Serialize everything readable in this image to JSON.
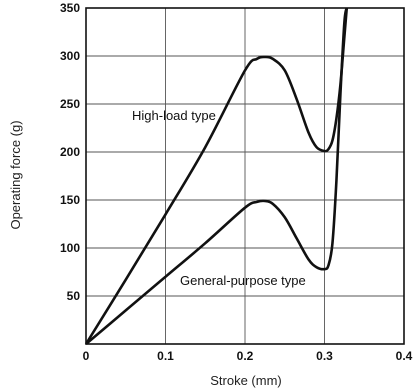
{
  "chart_data": {
    "type": "line",
    "xlabel": "Stroke (mm)",
    "ylabel": "Operating force (g)",
    "xlim": [
      0,
      0.4
    ],
    "ylim": [
      0,
      350
    ],
    "grid": true,
    "xticks": [
      0,
      0.1,
      0.2,
      0.3,
      0.4
    ],
    "xtick_labels": [
      "0",
      "0.1",
      "0.2",
      "0.3",
      "0.4"
    ],
    "yticks": [
      50,
      100,
      150,
      200,
      250,
      300,
      350
    ],
    "ytick_labels": [
      "50",
      "100",
      "150",
      "200",
      "250",
      "300",
      "350"
    ],
    "series": [
      {
        "name": "High-load type",
        "x": [
          0,
          0.05,
          0.1,
          0.15,
          0.2,
          0.215,
          0.225,
          0.235,
          0.25,
          0.265,
          0.28,
          0.29,
          0.3,
          0.305,
          0.31,
          0.315,
          0.32,
          0.325,
          0.328
        ],
        "y": [
          0,
          67,
          135,
          205,
          285,
          297,
          299,
          297,
          285,
          255,
          220,
          205,
          201,
          203,
          212,
          235,
          270,
          320,
          350
        ]
      },
      {
        "name": "General-purpose type",
        "x": [
          0,
          0.05,
          0.1,
          0.15,
          0.2,
          0.215,
          0.225,
          0.235,
          0.25,
          0.265,
          0.28,
          0.29,
          0.3,
          0.305,
          0.31,
          0.315,
          0.32,
          0.325,
          0.328
        ],
        "y": [
          0,
          35,
          70,
          105,
          142,
          148,
          149,
          146,
          132,
          110,
          88,
          80,
          78,
          82,
          105,
          170,
          260,
          335,
          350
        ]
      }
    ]
  }
}
